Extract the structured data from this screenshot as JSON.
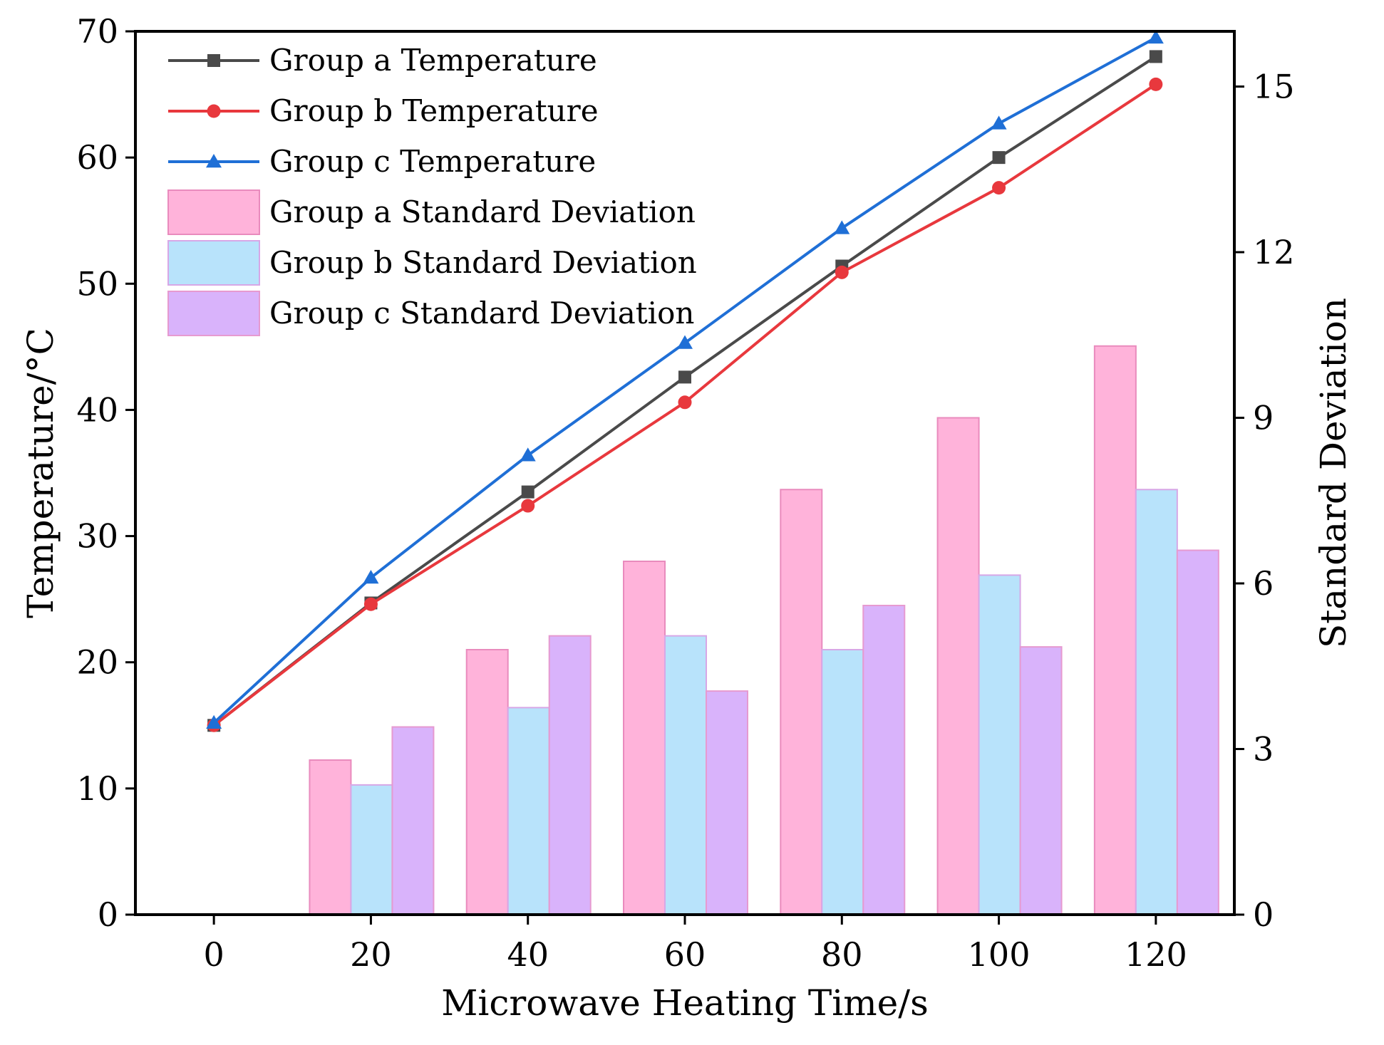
{
  "chart_data": {
    "type": "bar+line",
    "xlabel": "Microwave Heating Time/s",
    "ylabel_left": "Temperature/°C",
    "ylabel_right": "Standard Deviation",
    "x": [
      0,
      20,
      40,
      60,
      80,
      100,
      120
    ],
    "x_tick_labels": [
      "0",
      "20",
      "40",
      "60",
      "80",
      "100",
      "120"
    ],
    "xlim": [
      -10,
      130
    ],
    "ylim_left": [
      0,
      70
    ],
    "ylim_right": [
      0,
      16
    ],
    "y_left_ticks": [
      0,
      10,
      20,
      30,
      40,
      50,
      60,
      70
    ],
    "y_left_tick_labels": [
      "0",
      "10",
      "20",
      "30",
      "40",
      "50",
      "60",
      "70"
    ],
    "y_right_ticks": [
      0,
      3,
      6,
      9,
      12,
      15
    ],
    "y_right_tick_labels": [
      "0",
      "3",
      "6",
      "9",
      "12",
      "15"
    ],
    "legend_position": "top-left",
    "line_series": [
      {
        "name": "Group a Temperature",
        "marker": "square",
        "color": "#4a4a4a",
        "values": [
          15.0,
          24.7,
          33.5,
          42.6,
          51.4,
          60.0,
          68.0
        ]
      },
      {
        "name": "Group b Temperature",
        "marker": "circle",
        "color": "#e8383d",
        "values": [
          15.0,
          24.6,
          32.4,
          40.6,
          50.9,
          57.6,
          65.8
        ]
      },
      {
        "name": "Group c Temperature",
        "marker": "triangle",
        "color": "#1f6fd6",
        "values": [
          15.2,
          26.7,
          36.4,
          45.3,
          54.4,
          62.7,
          69.5
        ]
      }
    ],
    "bar_series": [
      {
        "name": "Group a Standard Deviation",
        "color": "#ffb3da",
        "edge": "#e98bbd",
        "values": [
          0,
          2.8,
          4.8,
          6.4,
          7.7,
          9.0,
          10.3
        ]
      },
      {
        "name": "Group b Standard Deviation",
        "color": "#b8e3fb",
        "edge": "#d7a7e6",
        "values": [
          0,
          2.35,
          3.75,
          5.05,
          4.8,
          6.15,
          7.7
        ]
      },
      {
        "name": "Group c Standard Deviation",
        "color": "#d9b3fb",
        "edge": "#e69ad0",
        "values": [
          0,
          3.4,
          5.05,
          4.05,
          5.6,
          4.85,
          6.6
        ]
      }
    ]
  }
}
